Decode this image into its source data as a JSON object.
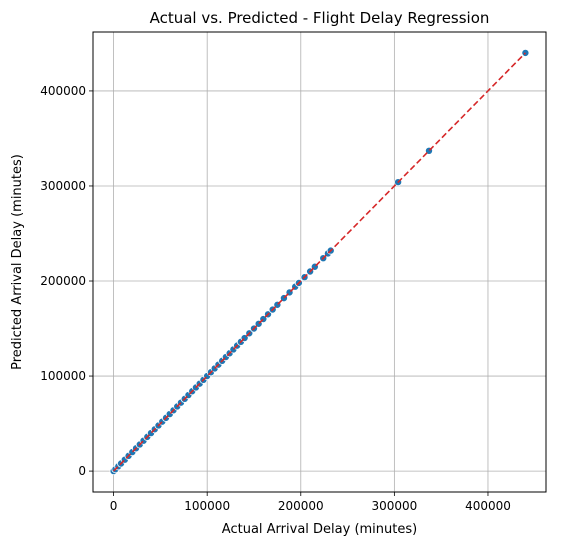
{
  "chart_data": {
    "type": "scatter",
    "title": "Actual vs. Predicted - Flight Delay Regression",
    "xlabel": "Actual Arrival Delay (minutes)",
    "ylabel": "Predicted Arrival Delay (minutes)",
    "xlim": [
      -22000,
      462000
    ],
    "ylim": [
      -22000,
      462000
    ],
    "x_ticks": [
      0,
      100000,
      200000,
      300000,
      400000
    ],
    "y_ticks": [
      0,
      100000,
      200000,
      300000,
      400000
    ],
    "grid": true,
    "colors": {
      "points": "#1f77b4",
      "point_edge": "#ffffff",
      "reference_line": "#d62728",
      "grid": "#b0b0b0"
    },
    "reference_line": {
      "style": "dashed",
      "from": [
        0,
        0
      ],
      "to": [
        440000,
        440000
      ]
    },
    "points": {
      "x": [
        0,
        2000,
        5000,
        8000,
        12000,
        16000,
        20000,
        24000,
        28000,
        32000,
        36000,
        40000,
        44000,
        48000,
        52000,
        56000,
        60000,
        64000,
        68000,
        72000,
        76000,
        80000,
        84000,
        88000,
        92000,
        96000,
        100000,
        104000,
        108000,
        112000,
        116000,
        120000,
        124000,
        128000,
        132000,
        136000,
        140000,
        145000,
        150000,
        155000,
        160000,
        165000,
        170000,
        175000,
        182000,
        188000,
        194000,
        198000,
        204000,
        210000,
        215000,
        224000,
        229000,
        232000,
        304000,
        337000,
        440000
      ],
      "y": [
        0,
        2000,
        5000,
        8000,
        12000,
        16000,
        20000,
        24000,
        28000,
        32000,
        36000,
        40000,
        44000,
        48000,
        52000,
        56000,
        60000,
        64000,
        68000,
        72000,
        76000,
        80000,
        84000,
        88000,
        92000,
        96000,
        100000,
        104000,
        108000,
        112000,
        116000,
        120000,
        124000,
        128000,
        132000,
        136000,
        140000,
        145000,
        150000,
        155000,
        160000,
        165000,
        170000,
        175000,
        182000,
        188000,
        194000,
        198000,
        204000,
        210000,
        215000,
        224000,
        229000,
        232000,
        304000,
        337000,
        440000
      ]
    }
  }
}
